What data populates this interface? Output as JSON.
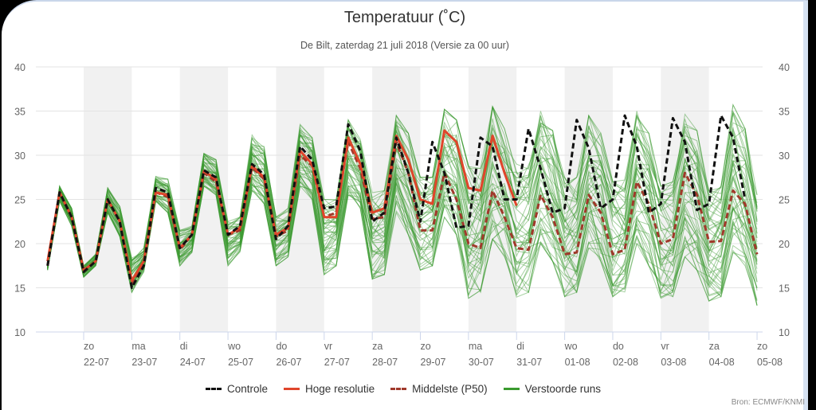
{
  "chart_data": {
    "type": "line",
    "title": "Temperatuur (˚C)",
    "subtitle": "De Bilt, zaterdag 21 juli 2018 (Versie za 00 uur)",
    "xlabel": "",
    "ylabel": "",
    "ylim": [
      10,
      40
    ],
    "yticks": [
      10,
      15,
      20,
      25,
      30,
      35,
      40
    ],
    "grid": true,
    "legend_position": "bottom-center",
    "source": "Bron: ECMWF/KNMI",
    "x_interval_hours": 6,
    "x_start": "21-07 06h",
    "x_ticks": [
      {
        "day": "zo",
        "date": "22-07"
      },
      {
        "day": "ma",
        "date": "23-07"
      },
      {
        "day": "di",
        "date": "24-07"
      },
      {
        "day": "wo",
        "date": "25-07"
      },
      {
        "day": "do",
        "date": "26-07"
      },
      {
        "day": "vr",
        "date": "27-07"
      },
      {
        "day": "za",
        "date": "28-07"
      },
      {
        "day": "zo",
        "date": "29-07"
      },
      {
        "day": "ma",
        "date": "30-07"
      },
      {
        "day": "di",
        "date": "31-07"
      },
      {
        "day": "wo",
        "date": "01-08"
      },
      {
        "day": "do",
        "date": "02-08"
      },
      {
        "day": "vr",
        "date": "03-08"
      },
      {
        "day": "za",
        "date": "04-08"
      },
      {
        "day": "zo",
        "date": "05-08"
      }
    ],
    "series": [
      {
        "name": "Controle",
        "color": "#111111",
        "dash": true,
        "values": [
          17.5,
          25.8,
          23,
          16.8,
          18,
          25,
          22.5,
          15,
          17.5,
          26.3,
          25.8,
          19.5,
          21,
          28.3,
          27.5,
          21,
          22,
          29,
          27.8,
          20.5,
          22,
          31,
          29.5,
          24,
          24.2,
          33.5,
          30.5,
          22.5,
          23.5,
          32,
          28,
          22.5,
          31.5,
          28,
          21.8,
          22,
          32,
          31,
          25,
          25,
          33,
          28.5,
          23.5,
          24,
          34,
          30.8,
          24,
          25,
          34.5,
          31,
          23.5,
          24.5,
          34.2,
          31.5,
          23.8,
          24.5,
          34.5,
          32,
          25
        ]
      },
      {
        "name": "Hoge resolutie",
        "color": "#e0452b",
        "dash": false,
        "values": [
          18,
          25.8,
          23,
          17,
          18,
          25,
          22.5,
          15.8,
          18,
          25.8,
          25.5,
          19.5,
          21,
          28.2,
          27.3,
          21,
          21.8,
          28.8,
          27.5,
          21,
          21.8,
          30.5,
          29,
          23,
          23,
          32,
          29,
          23.5,
          24,
          32.2,
          29.5,
          25,
          24.5,
          32.8,
          31.5,
          26.3,
          26,
          32.2,
          28,
          24.3
        ]
      },
      {
        "name": "Middelste (P50)",
        "color": "#a0392b",
        "dash": true,
        "values": [
          17.5,
          25.8,
          23,
          16.8,
          18,
          25,
          22.5,
          15.5,
          17.5,
          25.8,
          25.3,
          19.3,
          21,
          28,
          27,
          21,
          21.5,
          28.6,
          27.3,
          20.8,
          21.5,
          30,
          28.8,
          23,
          23.5,
          31.5,
          28.5,
          22.8,
          23,
          31.5,
          28,
          21.5,
          21.5,
          28,
          25,
          20,
          19.5,
          26,
          23,
          19.5,
          19.3,
          25.5,
          23,
          18.8,
          19,
          25.5,
          23.5,
          18.8,
          19.3,
          27,
          24.5,
          20,
          20.5,
          28,
          25.5,
          20.2,
          20.3,
          26,
          24.5,
          18.8
        ]
      }
    ],
    "ensemble": {
      "name": "Verstoorde runs",
      "color": "#3a9a2e",
      "upper": [
        17.5,
        26.5,
        24,
        17.5,
        18.8,
        26.3,
        24.2,
        18.5,
        19.5,
        27.6,
        27.3,
        21.5,
        22,
        30.2,
        29.5,
        22.5,
        23,
        32.3,
        31,
        23,
        24,
        33.5,
        32,
        25,
        25,
        34,
        31.8,
        25.8,
        26,
        34.5,
        32.5,
        27.5,
        27.5,
        35.2,
        34,
        28.8,
        28.5,
        35.5,
        33,
        29,
        29,
        35,
        32.8,
        27.5,
        27.5,
        34.5,
        32.5,
        27,
        27.2,
        35,
        32.5,
        26.5,
        27,
        35,
        32.8,
        26,
        26.5,
        35.7,
        33,
        25.5
      ],
      "lower": [
        17,
        24.8,
        22,
        16.2,
        17.5,
        23.5,
        20.8,
        14.5,
        16.8,
        24.8,
        23.5,
        17.5,
        19,
        26.5,
        25.5,
        17.5,
        19,
        26,
        24.5,
        17.5,
        18.5,
        26.5,
        25,
        16.5,
        17.5,
        25.5,
        24,
        16,
        16.5,
        23.5,
        21,
        17,
        17.5,
        23,
        21,
        13.8,
        14.5,
        20.5,
        18.5,
        13.8,
        14.5,
        20,
        18,
        14,
        14.5,
        19.5,
        18,
        14,
        14.5,
        20,
        17.5,
        13.8,
        14,
        18.5,
        17,
        13.5,
        14,
        19,
        17.5,
        13
      ]
    }
  },
  "legend": [
    {
      "label": "Controle",
      "color": "#111111",
      "dash": true
    },
    {
      "label": "Hoge resolutie",
      "color": "#e0452b",
      "dash": false
    },
    {
      "label": "Middelste (P50)",
      "color": "#a0392b",
      "dash": true
    },
    {
      "label": "Verstoorde runs",
      "color": "#3a9a2e",
      "dash": false
    }
  ]
}
